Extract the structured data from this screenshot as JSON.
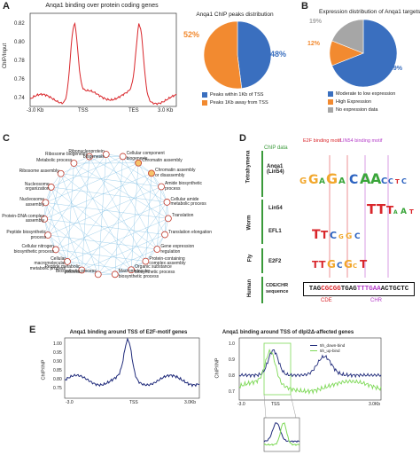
{
  "panels": {
    "A": "A",
    "B": "B",
    "C": "C",
    "D": "D",
    "E": "E"
  },
  "panelA_line": {
    "title": "Anqa1 binding over protein coding genes",
    "ylabel": "ChIP/Input",
    "yticks": [
      "0.82",
      "0.80",
      "0.78",
      "0.76",
      "0.74"
    ],
    "xticks": [
      "-3.0 Kb",
      "TSS",
      "TES",
      "3.0 Kb"
    ],
    "line_color": "#d9262b"
  },
  "panelA_pie": {
    "title": "Anqa1 ChIP peaks distribution",
    "slices": [
      {
        "label": "48%",
        "value": 48,
        "color": "#3a6fbf"
      },
      {
        "label": "52%",
        "value": 52,
        "color": "#f28a30"
      }
    ],
    "legend": [
      {
        "text": "Peaks within 1Kb of TSS",
        "color": "#3a6fbf"
      },
      {
        "text": "Peaks 1Kb away from TSS",
        "color": "#f28a30"
      }
    ]
  },
  "panelB_pie": {
    "title": "Expression distribution of Anqa1 targets",
    "slices": [
      {
        "label": "69%",
        "value": 69,
        "color": "#3a6fbf"
      },
      {
        "label": "12%",
        "value": 12,
        "color": "#f28a30"
      },
      {
        "label": "19%",
        "value": 19,
        "color": "#a6a6a6"
      }
    ],
    "legend": [
      {
        "text": "Moderate to low expression",
        "color": "#3a6fbf"
      },
      {
        "text": "High Expression",
        "color": "#f28a30"
      },
      {
        "text": "No expression data",
        "color": "#a6a6a6"
      }
    ]
  },
  "panelC": {
    "nodes": [
      "Metabolic process",
      "Ribosome biogenesis",
      "Ribonucleoprotein biogenesis",
      "Cellular component biogenesis",
      "Chromatin assembly",
      "Chromatin assembly or disassembly",
      "Amide biosynthetic process",
      "Cellular amide metabolic process",
      "Translation",
      "Translation elongation",
      "Gene expression regulation",
      "Protein-containing complex assembly",
      "Organic substance biosynthetic process",
      "Macromolecule biosynthetic process",
      "Biosynthetic process",
      "Peptide metabolic process",
      "Cellular macromolecular metabolic process",
      "Cellular nitrogen biosynthetic process",
      "Peptide biosynthetic process",
      "Protein-DNA complex assembly",
      "Nucleosome assembly",
      "Nucleosome organization",
      "Ribosome assembly"
    ]
  },
  "panelD": {
    "chip_data": "ChIP data",
    "e2f_motif": "E2F binding motif",
    "lin54_motif": "LIN54 binding motif",
    "groups": [
      "Tetrahymena",
      "Worm",
      "Fly",
      "Human"
    ],
    "rows": [
      "Anqa1 (Lin54)",
      "Lin54",
      "EFL1",
      "E2F2",
      "CDE/CHR sequence"
    ],
    "sequence": {
      "pre": "TAG",
      "cde": "CGCGG",
      "mid": "TGAG",
      "chr": "TTTGAA",
      "post": "ACTGCTC"
    },
    "cde_label": "CDE",
    "chr_label": "CHR"
  },
  "panelE_left": {
    "title": "Anqa1 binding around TSS of E2F-motif genes",
    "ylabel": "ChIP/INP",
    "yticks": [
      "1.00",
      "0.95",
      "0.90",
      "0.85",
      "0.80",
      "0.75"
    ],
    "xticks": [
      "-3.0",
      "TSS",
      "3.0Kb"
    ],
    "line_color": "#1f2a7a"
  },
  "panelE_right": {
    "title": "Anqa1 binding around TSS of dlpl2Δ-affected genes",
    "ylabel": "ChIP/INP",
    "yticks": [
      "1.0",
      "0.9",
      "0.8",
      "0.7"
    ],
    "xticks": [
      "-3.0",
      "TSS",
      "3.0Kb"
    ],
    "legend": [
      {
        "text": "5h_down-bind",
        "color": "#1f2a7a"
      },
      {
        "text": "5h_up-bind",
        "color": "#7ed957"
      }
    ]
  }
}
